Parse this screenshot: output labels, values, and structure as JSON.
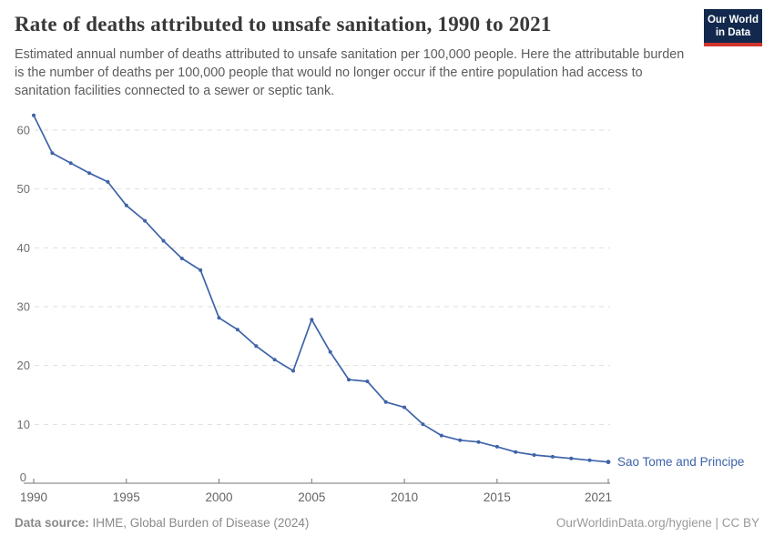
{
  "header": {
    "title": "Rate of deaths attributed to unsafe sanitation, 1990 to 2021",
    "subtitle": "Estimated annual number of deaths attributed to unsafe sanitation per 100,000 people. Here the attributable burden is the number of deaths per 100,000 people that would no longer occur if the entire population had access to sanitation facilities connected to a sewer or septic tank.",
    "logo": {
      "line1": "Our World",
      "line2": "in Data",
      "bg_color": "#12294d",
      "stripe_color": "#d0342c"
    }
  },
  "chart_data": {
    "type": "line",
    "title": "Rate of deaths attributed to unsafe sanitation, 1990 to 2021",
    "x": [
      1990,
      1991,
      1992,
      1993,
      1994,
      1995,
      1996,
      1997,
      1998,
      1999,
      2000,
      2001,
      2002,
      2003,
      2004,
      2005,
      2006,
      2007,
      2008,
      2009,
      2010,
      2011,
      2012,
      2013,
      2014,
      2015,
      2016,
      2017,
      2018,
      2019,
      2020,
      2021
    ],
    "series": [
      {
        "name": "Sao Tome and Principe",
        "color": "#3e63a8",
        "values": [
          62.5,
          56.1,
          54.4,
          52.7,
          51.2,
          47.2,
          44.6,
          41.2,
          38.2,
          36.2,
          28.1,
          26.1,
          23.3,
          21.0,
          19.1,
          27.8,
          22.3,
          17.6,
          17.3,
          13.8,
          12.9,
          10.0,
          8.1,
          7.3,
          7.0,
          6.2,
          5.3,
          4.8,
          4.5,
          4.2,
          3.9,
          3.6
        ]
      }
    ],
    "xlabel": "",
    "ylabel": "",
    "ylim": [
      0,
      63
    ],
    "yticks": [
      0,
      10,
      20,
      30,
      40,
      50,
      60
    ],
    "xticks": [
      1990,
      1995,
      2000,
      2005,
      2010,
      2015,
      2021
    ],
    "grid": "horizontal-dashed",
    "grid_color": "#dedede",
    "axis_color": "#757575",
    "legend_position": "end-of-line-label"
  },
  "footer": {
    "source_label": "Data source:",
    "source_text": " IHME, Global Burden of Disease (2024)",
    "right_text": "OurWorldinData.org/hygiene | CC BY"
  }
}
